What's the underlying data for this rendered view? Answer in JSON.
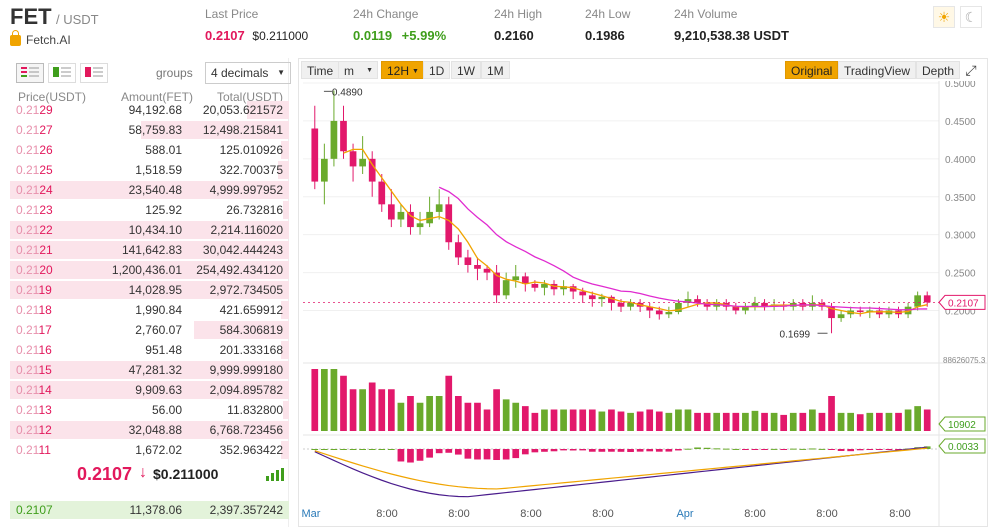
{
  "pair": {
    "base": "FET",
    "quote": "/ USDT",
    "project": "Fetch.AI"
  },
  "stats": {
    "last_price": {
      "label": "Last Price",
      "value": "0.2107",
      "usd": "$0.211000"
    },
    "change": {
      "label": "24h Change",
      "value": "0.0119",
      "pct": "+5.99%"
    },
    "high": {
      "label": "24h High",
      "value": "0.2160"
    },
    "low": {
      "label": "24h Low",
      "value": "0.1986"
    },
    "volume": {
      "label": "24h Volume",
      "value": "9,210,538.38 USDT"
    }
  },
  "theme": {
    "light_icon": "sun-icon",
    "dark_icon": "moon-icon"
  },
  "orderbook": {
    "groups_label": "groups",
    "decimals": "4 decimals",
    "headers": {
      "price": "Price(USDT)",
      "amount": "Amount(FET)",
      "total": "Total(USDT)"
    },
    "asks": [
      {
        "p1": "0.21",
        "p2": "29",
        "amount": "94,192.68",
        "total": "20,053.621572",
        "depth": 0.15
      },
      {
        "p1": "0.21",
        "p2": "27",
        "amount": "58,759.83",
        "total": "12,498.215841",
        "depth": 0.53
      },
      {
        "p1": "0.21",
        "p2": "26",
        "amount": "588.01",
        "total": "125.010926",
        "depth": 0.03
      },
      {
        "p1": "0.21",
        "p2": "25",
        "amount": "1,518.59",
        "total": "322.700375",
        "depth": 0.04
      },
      {
        "p1": "0.21",
        "p2": "24",
        "amount": "23,540.48",
        "total": "4,999.997952",
        "depth": 1.0
      },
      {
        "p1": "0.21",
        "p2": "23",
        "amount": "125.92",
        "total": "26.732816",
        "depth": 0.02
      },
      {
        "p1": "0.21",
        "p2": "22",
        "amount": "10,434.10",
        "total": "2,214.116020",
        "depth": 1.0
      },
      {
        "p1": "0.21",
        "p2": "21",
        "amount": "141,642.83",
        "total": "30,042.444243",
        "depth": 1.0
      },
      {
        "p1": "0.21",
        "p2": "20",
        "amount": "1,200,436.01",
        "total": "254,492.434120",
        "depth": 1.0
      },
      {
        "p1": "0.21",
        "p2": "19",
        "amount": "14,028.95",
        "total": "2,972.734505",
        "depth": 1.0
      },
      {
        "p1": "0.21",
        "p2": "18",
        "amount": "1,990.84",
        "total": "421.659912",
        "depth": 0.03
      },
      {
        "p1": "0.21",
        "p2": "17",
        "amount": "2,760.07",
        "total": "584.306819",
        "depth": 0.34
      },
      {
        "p1": "0.21",
        "p2": "16",
        "amount": "951.48",
        "total": "201.333168",
        "depth": 0.03
      },
      {
        "p1": "0.21",
        "p2": "15",
        "amount": "47,281.32",
        "total": "9,999.999180",
        "depth": 1.0
      },
      {
        "p1": "0.21",
        "p2": "14",
        "amount": "9,909.63",
        "total": "2,094.895782",
        "depth": 1.0
      },
      {
        "p1": "0.21",
        "p2": "13",
        "amount": "56.00",
        "total": "11.832800",
        "depth": 0.02
      },
      {
        "p1": "0.21",
        "p2": "12",
        "amount": "32,048.88",
        "total": "6,768.723456",
        "depth": 1.0
      },
      {
        "p1": "0.21",
        "p2": "11",
        "amount": "1,672.02",
        "total": "352.963422",
        "depth": 0.03
      }
    ],
    "last_price": "0.2107",
    "last_arrow": "↓",
    "last_usd": "$0.211000",
    "bid": {
      "price": "0.2107",
      "amount": "11,378.06",
      "total": "2,397.357242",
      "depth": 1.0
    }
  },
  "chart_toolbar": {
    "time": "Time",
    "m": "m",
    "h12": "12H",
    "d1": "1D",
    "w1": "1W",
    "mo1": "1M",
    "original": "Original",
    "tradingview": "TradingView",
    "depth": "Depth"
  },
  "chart_data": {
    "type": "candlestick",
    "price_axis": {
      "min": 0.14,
      "max": 0.5,
      "ticks": [
        "0.5000",
        "0.4500",
        "0.4000",
        "0.3500",
        "0.3000",
        "0.2500",
        "0.2000"
      ]
    },
    "x_ticks": [
      "Mar",
      "8:00",
      "8:00",
      "8:00",
      "8:00",
      "Apr",
      "8:00",
      "8:00",
      "8:00"
    ],
    "high_label": "0.4890",
    "low_label": "0.1699",
    "current_price": "0.2107",
    "volume_scale": "88626075.3",
    "volume_current": "10902",
    "macd_current": "0.0033",
    "candles": [
      [
        0.44,
        0.37,
        0.47,
        0.36
      ],
      [
        0.37,
        0.4,
        0.42,
        0.34
      ],
      [
        0.4,
        0.45,
        0.49,
        0.39
      ],
      [
        0.45,
        0.41,
        0.47,
        0.4
      ],
      [
        0.41,
        0.39,
        0.42,
        0.37
      ],
      [
        0.39,
        0.4,
        0.43,
        0.38
      ],
      [
        0.4,
        0.37,
        0.41,
        0.35
      ],
      [
        0.37,
        0.34,
        0.38,
        0.33
      ],
      [
        0.34,
        0.32,
        0.36,
        0.31
      ],
      [
        0.32,
        0.33,
        0.34,
        0.31
      ],
      [
        0.33,
        0.31,
        0.34,
        0.3
      ],
      [
        0.31,
        0.315,
        0.33,
        0.3
      ],
      [
        0.315,
        0.33,
        0.35,
        0.31
      ],
      [
        0.33,
        0.34,
        0.36,
        0.32
      ],
      [
        0.34,
        0.29,
        0.35,
        0.28
      ],
      [
        0.29,
        0.27,
        0.3,
        0.26
      ],
      [
        0.27,
        0.26,
        0.28,
        0.25
      ],
      [
        0.26,
        0.255,
        0.27,
        0.24
      ],
      [
        0.255,
        0.25,
        0.26,
        0.24
      ],
      [
        0.25,
        0.22,
        0.26,
        0.21
      ],
      [
        0.22,
        0.24,
        0.25,
        0.215
      ],
      [
        0.24,
        0.245,
        0.26,
        0.23
      ],
      [
        0.245,
        0.235,
        0.25,
        0.225
      ],
      [
        0.235,
        0.23,
        0.24,
        0.225
      ],
      [
        0.23,
        0.235,
        0.24,
        0.22
      ],
      [
        0.235,
        0.228,
        0.24,
        0.22
      ],
      [
        0.228,
        0.232,
        0.24,
        0.22
      ],
      [
        0.232,
        0.225,
        0.235,
        0.215
      ],
      [
        0.225,
        0.22,
        0.23,
        0.21
      ],
      [
        0.22,
        0.215,
        0.225,
        0.205
      ],
      [
        0.215,
        0.218,
        0.222,
        0.205
      ],
      [
        0.218,
        0.21,
        0.22,
        0.2
      ],
      [
        0.21,
        0.205,
        0.215,
        0.198
      ],
      [
        0.205,
        0.21,
        0.215,
        0.2
      ],
      [
        0.21,
        0.205,
        0.215,
        0.198
      ],
      [
        0.205,
        0.2,
        0.21,
        0.19
      ],
      [
        0.2,
        0.195,
        0.205,
        0.188
      ],
      [
        0.195,
        0.198,
        0.205,
        0.19
      ],
      [
        0.198,
        0.21,
        0.215,
        0.195
      ],
      [
        0.21,
        0.215,
        0.225,
        0.205
      ],
      [
        0.215,
        0.21,
        0.22,
        0.205
      ],
      [
        0.21,
        0.205,
        0.215,
        0.2
      ],
      [
        0.205,
        0.21,
        0.215,
        0.2
      ],
      [
        0.21,
        0.205,
        0.215,
        0.2
      ],
      [
        0.205,
        0.2,
        0.21,
        0.195
      ],
      [
        0.2,
        0.205,
        0.21,
        0.195
      ],
      [
        0.205,
        0.21,
        0.218,
        0.2
      ],
      [
        0.21,
        0.205,
        0.215,
        0.2
      ],
      [
        0.205,
        0.208,
        0.215,
        0.2
      ],
      [
        0.208,
        0.205,
        0.212,
        0.2
      ],
      [
        0.205,
        0.21,
        0.215,
        0.2
      ],
      [
        0.21,
        0.205,
        0.215,
        0.2
      ],
      [
        0.205,
        0.21,
        0.22,
        0.2
      ],
      [
        0.21,
        0.205,
        0.215,
        0.2
      ],
      [
        0.205,
        0.19,
        0.21,
        0.17
      ],
      [
        0.19,
        0.195,
        0.2,
        0.185
      ],
      [
        0.195,
        0.2,
        0.205,
        0.19
      ],
      [
        0.2,
        0.198,
        0.205,
        0.192
      ],
      [
        0.198,
        0.2,
        0.205,
        0.19
      ],
      [
        0.2,
        0.195,
        0.205,
        0.19
      ],
      [
        0.195,
        0.2,
        0.205,
        0.19
      ],
      [
        0.2,
        0.195,
        0.205,
        0.19
      ],
      [
        0.195,
        0.205,
        0.21,
        0.19
      ],
      [
        0.205,
        0.22,
        0.225,
        0.2
      ],
      [
        0.22,
        0.2107,
        0.225,
        0.205
      ]
    ]
  }
}
